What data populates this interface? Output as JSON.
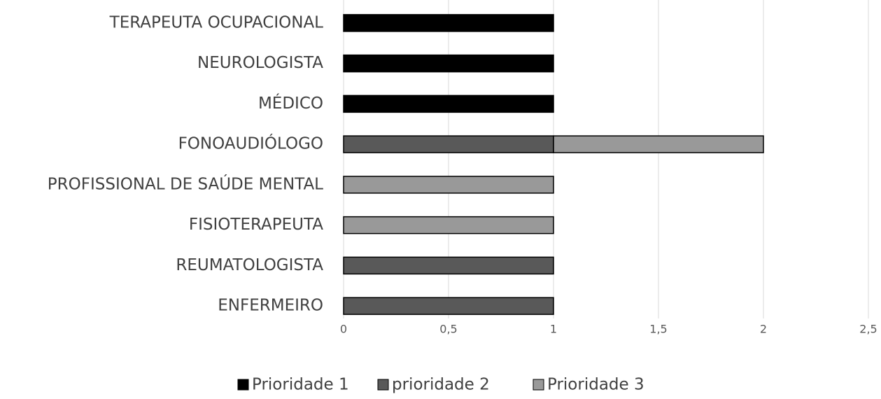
{
  "chart_data": {
    "type": "stacked-bar-horizontal",
    "categories": [
      "TERAPEUTA OCUPACIONAL",
      "NEUROLOGISTA",
      "MÉDICO",
      "FONOAUDIÓLOGO",
      "PROFISSIONAL DE SAÚDE MENTAL",
      "FISIOTERAPEUTA",
      "REUMATOLOGISTA",
      "ENFERMEIRO"
    ],
    "series": [
      {
        "name": "Prioridade 1",
        "color": "#000000",
        "values": [
          1,
          1,
          1,
          0,
          0,
          0,
          0,
          0
        ]
      },
      {
        "name": "prioridade 2",
        "color": "#595959",
        "values": [
          0,
          0,
          0,
          1,
          0,
          0,
          1,
          1
        ]
      },
      {
        "name": "Prioridade 3",
        "color": "#999999",
        "values": [
          0,
          0,
          0,
          1,
          1,
          1,
          0,
          0
        ]
      }
    ],
    "xlim": [
      0,
      2.5
    ],
    "xticks": [
      0,
      {
        "value": 0.5,
        "label": "0,5"
      },
      1,
      {
        "value": 1.5,
        "label": "1,5"
      },
      2,
      {
        "value": 2.5,
        "label": "2,5"
      }
    ],
    "grid": true,
    "legend": "bottom"
  }
}
